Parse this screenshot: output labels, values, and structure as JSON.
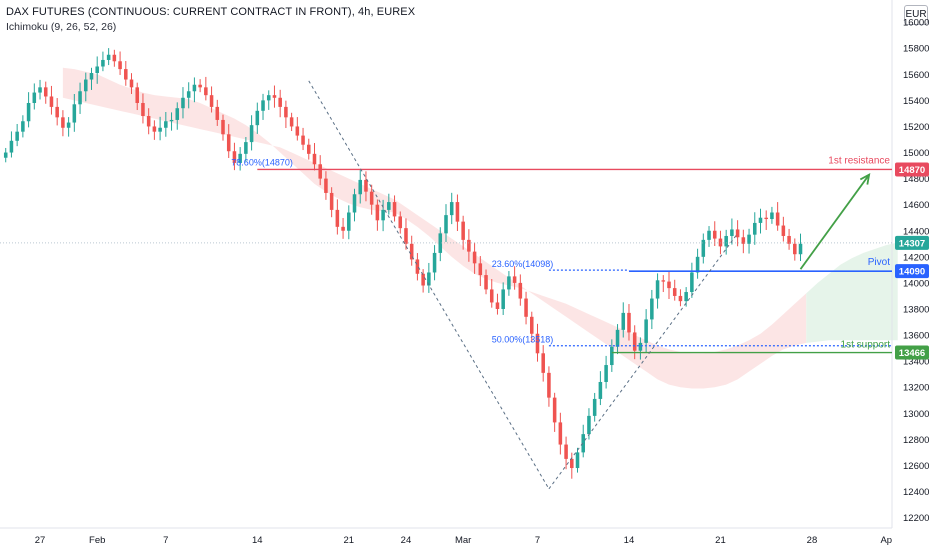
{
  "header": {
    "title": "DAX FUTURES (CONTINUOUS: CURRENT CONTRACT IN FRONT), 4h, EUREX",
    "indicator": "Ichimoku (9, 26, 52, 26)",
    "currency": "EUR"
  },
  "colors": {
    "up": "#26a69a",
    "down": "#ef5350",
    "resistance": "#e84a5f",
    "pivot": "#2962ff",
    "support": "#43a047",
    "cloud_red": "#fce2e2",
    "cloud_green": "#e3f3e8",
    "arrow": "#43a047",
    "price_tag": "#26a69a",
    "axis_text": "#131722"
  },
  "chart_data": {
    "type": "candlestick",
    "y_axis": {
      "ticks": [
        12200,
        12400,
        12600,
        12800,
        13000,
        13200,
        13400,
        13600,
        13800,
        14000,
        14200,
        14400,
        14600,
        14800,
        15000,
        15200,
        15400,
        15600,
        15800,
        16000
      ],
      "ylim": [
        12120,
        16170
      ]
    },
    "x_axis": {
      "ticks": [
        {
          "label": "27",
          "xi": 6
        },
        {
          "label": "Feb",
          "xi": 16
        },
        {
          "label": "7",
          "xi": 28
        },
        {
          "label": "14",
          "xi": 44
        },
        {
          "label": "21",
          "xi": 60
        },
        {
          "label": "24",
          "xi": 70
        },
        {
          "label": "Mar",
          "xi": 80
        },
        {
          "label": "7",
          "xi": 93
        },
        {
          "label": "14",
          "xi": 109
        },
        {
          "label": "21",
          "xi": 125
        },
        {
          "label": "28",
          "xi": 141
        },
        {
          "label": "Ap",
          "xi": 154
        }
      ],
      "xlim": [
        -1,
        155
      ]
    },
    "closes": [
      15000,
      15090,
      15160,
      15240,
      15380,
      15460,
      15500,
      15430,
      15350,
      15270,
      15190,
      15230,
      15370,
      15470,
      15560,
      15610,
      15660,
      15710,
      15750,
      15700,
      15640,
      15560,
      15500,
      15380,
      15280,
      15200,
      15160,
      15190,
      15240,
      15250,
      15340,
      15420,
      15470,
      15520,
      15500,
      15440,
      15350,
      15250,
      15140,
      15010,
      14920,
      14990,
      15080,
      15210,
      15320,
      15400,
      15440,
      15420,
      15350,
      15270,
      15200,
      15130,
      15060,
      14990,
      14910,
      14800,
      14690,
      14560,
      14430,
      14400,
      14540,
      14680,
      14790,
      14700,
      14600,
      14480,
      14560,
      14620,
      14510,
      14420,
      14300,
      14180,
      14070,
      13980,
      14080,
      14230,
      14380,
      14520,
      14620,
      14470,
      14330,
      14240,
      14150,
      14060,
      13950,
      13850,
      13800,
      13950,
      14050,
      14000,
      13880,
      13740,
      13610,
      13460,
      13310,
      13120,
      12930,
      12760,
      12650,
      12580,
      12700,
      12840,
      12980,
      13110,
      13240,
      13370,
      13510,
      13640,
      13770,
      13620,
      13480,
      13540,
      13720,
      13880,
      14020,
      14010,
      13960,
      13900,
      13860,
      13930,
      14080,
      14200,
      14330,
      14400,
      14340,
      14280,
      14360,
      14410,
      14350,
      14300,
      14370,
      14460,
      14500,
      14490,
      14540,
      14440,
      14360,
      14300,
      14220,
      14300
    ],
    "ichimoku_cloud": {
      "top": [
        15650,
        15640,
        15620,
        15600,
        15560,
        15520,
        15490,
        15460,
        15440,
        15430,
        15420,
        15410,
        15380,
        15340,
        15300,
        15260,
        15210,
        15150,
        15080,
        15000,
        14920,
        14840,
        14760,
        14700,
        14650,
        14610,
        14580,
        14560,
        14550,
        14540,
        14490,
        14430,
        14360,
        14280,
        14200,
        14130,
        14070,
        14030,
        14000,
        13980,
        13960,
        13930,
        13900,
        13870,
        13840,
        13800,
        13760,
        13720,
        13680,
        13640,
        13600,
        13560,
        13520,
        13490,
        13470,
        13460,
        13460,
        13470,
        13490,
        13520,
        13560,
        13610,
        13680,
        13760,
        13840,
        13920,
        14000,
        14070,
        14140,
        14190,
        14230,
        14260,
        14290,
        14310
      ],
      "bottom": [
        15420,
        15400,
        15380,
        15360,
        15340,
        15320,
        15300,
        15280,
        15260,
        15240,
        15220,
        15200,
        15180,
        15160,
        15140,
        15120,
        15100,
        15080,
        15060,
        15040,
        15000,
        14960,
        14920,
        14880,
        14840,
        14800,
        14760,
        14720,
        14680,
        14640,
        14580,
        14520,
        14460,
        14400,
        14340,
        14280,
        14220,
        14160,
        14100,
        14040,
        13980,
        13920,
        13860,
        13800,
        13740,
        13680,
        13620,
        13560,
        13500,
        13440,
        13380,
        13320,
        13260,
        13220,
        13200,
        13190,
        13190,
        13200,
        13220,
        13260,
        13320,
        13380,
        13440,
        13490,
        13520,
        13540,
        13550,
        13560,
        13560,
        13560,
        13560,
        13560,
        13560,
        13560
      ],
      "start_xi": 81,
      "green_from_xi": 140
    }
  },
  "annotations": {
    "resistance": {
      "label": "1st resistance",
      "price": 14870,
      "tag": "14870"
    },
    "pivot": {
      "label": "Pivot",
      "price": 14090,
      "tag": "14090"
    },
    "support": {
      "label": "1st support",
      "price": 13466,
      "tag": "13466"
    },
    "last_price": {
      "price": 14307,
      "tag": "14307"
    },
    "fib_786": {
      "label": "78.60%(14870)",
      "price": 14870
    },
    "fib_236": {
      "label": "23.60%(14098)",
      "price": 14098
    },
    "fib_500": {
      "label": "50.00%(13518)",
      "price": 13518
    }
  }
}
